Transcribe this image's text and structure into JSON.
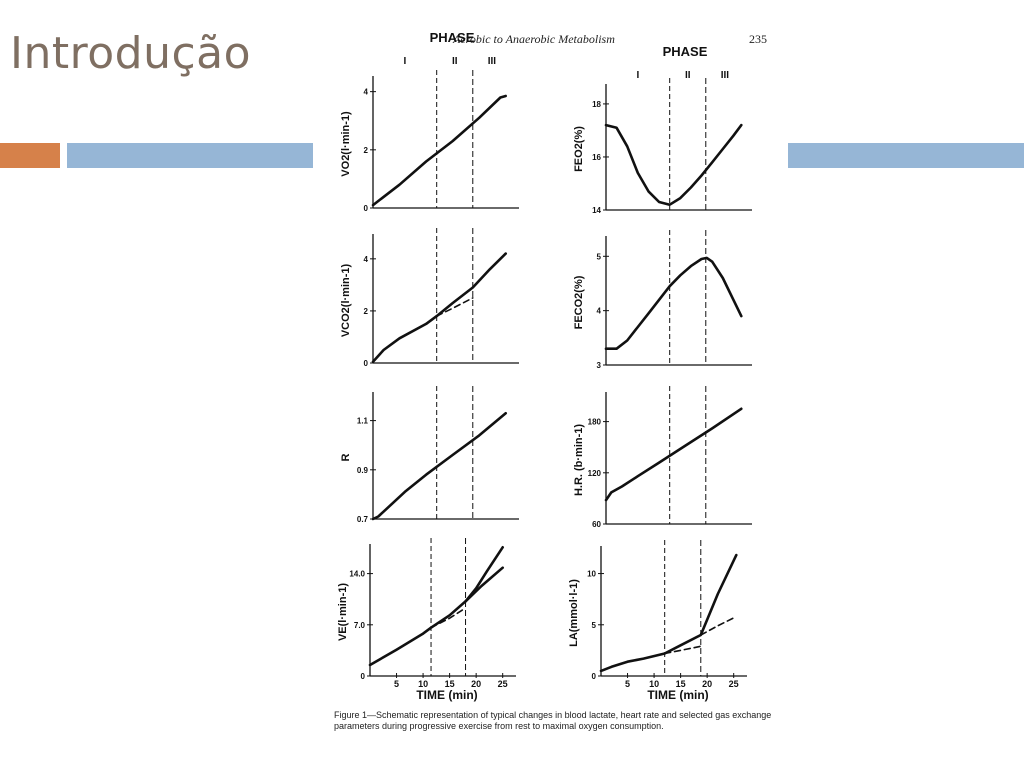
{
  "slide": {
    "title": "Introdução",
    "colors": {
      "title": "#7f6f62",
      "accent_orange": "#d6814a",
      "accent_blue": "#96b6d6"
    }
  },
  "figure": {
    "running_head": "Aerobic to Anaerobic Metabolism",
    "page_number": "235",
    "phase_label": "PHASE",
    "phases": [
      "I",
      "II",
      "III"
    ],
    "time_axis_label": "TIME (min)",
    "caption": "Figure 1—Schematic representation of typical changes in blood lactate, heart rate and selected gas exchange parameters during progressive exercise from rest to maximal oxygen consumption."
  },
  "chart_data": [
    {
      "type": "line",
      "id": "vo2",
      "column": "left",
      "ylabel": "VO2(l·min-1)",
      "ylim": [
        0,
        4.4
      ],
      "yticks": [
        0,
        2,
        4
      ],
      "xlim": [
        0,
        26
      ],
      "xticks": [],
      "thresholds": {
        "first": 12,
        "second": 18.8
      },
      "phase_header": true,
      "series": [
        {
          "style": "solid",
          "x": [
            0,
            5,
            10,
            15,
            20,
            24,
            25
          ],
          "y": [
            0.1,
            0.8,
            1.6,
            2.3,
            3.1,
            3.8,
            3.85
          ]
        }
      ]
    },
    {
      "type": "line",
      "id": "feo2",
      "column": "right",
      "ylabel": "FEO2(%)",
      "ylim": [
        14,
        18.6
      ],
      "yticks": [
        14,
        16,
        18
      ],
      "xlim": [
        0,
        26
      ],
      "xticks": [],
      "thresholds": {
        "first": 12,
        "second": 18.8
      },
      "phase_header": true,
      "series": [
        {
          "style": "solid",
          "x": [
            0,
            2,
            4,
            6,
            8,
            10,
            12,
            14,
            16,
            18,
            20,
            22,
            24,
            25.5
          ],
          "y": [
            17.2,
            17.1,
            16.4,
            15.4,
            14.7,
            14.3,
            14.2,
            14.45,
            14.85,
            15.3,
            15.8,
            16.3,
            16.8,
            17.2
          ]
        }
      ]
    },
    {
      "type": "line",
      "id": "vco2",
      "column": "left",
      "ylabel": "VCO2(l·min-1)",
      "ylim": [
        0,
        4.8
      ],
      "yticks": [
        0,
        2,
        4
      ],
      "xlim": [
        0,
        26
      ],
      "xticks": [],
      "thresholds": {
        "first": 12,
        "second": 18.8
      },
      "series": [
        {
          "style": "solid",
          "x": [
            0,
            2,
            5,
            10,
            12,
            15,
            18.8,
            22,
            25
          ],
          "y": [
            0.05,
            0.5,
            0.95,
            1.5,
            1.8,
            2.3,
            2.9,
            3.6,
            4.2
          ]
        },
        {
          "style": "dashed",
          "x": [
            12,
            15,
            18.8
          ],
          "y": [
            1.8,
            2.1,
            2.5
          ]
        }
      ]
    },
    {
      "type": "line",
      "id": "feco2",
      "column": "right",
      "ylabel": "FECO2(%)",
      "ylim": [
        3,
        5.3
      ],
      "yticks": [
        3,
        4,
        5
      ],
      "xlim": [
        0,
        26
      ],
      "xticks": [],
      "thresholds": {
        "first": 12,
        "second": 18.8
      },
      "series": [
        {
          "style": "solid",
          "x": [
            0,
            2,
            4,
            6,
            8,
            10,
            12,
            14,
            16,
            18,
            19,
            20,
            22,
            24,
            25.5
          ],
          "y": [
            3.3,
            3.3,
            3.45,
            3.7,
            3.95,
            4.2,
            4.45,
            4.65,
            4.82,
            4.95,
            4.97,
            4.9,
            4.6,
            4.2,
            3.9
          ]
        }
      ]
    },
    {
      "type": "line",
      "id": "r",
      "column": "left",
      "ylabel": "R",
      "ylim": [
        0.7,
        1.2
      ],
      "yticks": [
        0.7,
        0.9,
        1.1
      ],
      "xlim": [
        0,
        26
      ],
      "xticks": [],
      "thresholds": {
        "first": 12,
        "second": 18.8
      },
      "series": [
        {
          "style": "solid",
          "x": [
            0,
            1,
            3,
            6,
            10,
            15,
            20,
            25
          ],
          "y": [
            0.7,
            0.71,
            0.75,
            0.81,
            0.88,
            0.96,
            1.04,
            1.13
          ]
        }
      ]
    },
    {
      "type": "line",
      "id": "hr",
      "column": "right",
      "ylabel": "H.R. (b·min-1)",
      "ylim": [
        60,
        210
      ],
      "yticks": [
        60,
        120,
        180
      ],
      "xlim": [
        0,
        26
      ],
      "xticks": [],
      "thresholds": {
        "first": 12,
        "second": 18.8
      },
      "series": [
        {
          "style": "solid",
          "x": [
            0,
            1,
            3,
            6,
            10,
            15,
            20,
            25.5
          ],
          "y": [
            88,
            97,
            104,
            116,
            132,
            152,
            172,
            195
          ]
        }
      ]
    },
    {
      "type": "line",
      "id": "ve",
      "column": "left",
      "ylabel": "VE(l·min-1)",
      "ylim": [
        0,
        17.5
      ],
      "yticks": [
        0,
        7,
        14
      ],
      "yticklabels": [
        "0",
        "7.0",
        "14.0"
      ],
      "xlim": [
        0,
        26
      ],
      "xticks": [
        5,
        10,
        15,
        20,
        25
      ],
      "xlabel": "TIME (min)",
      "thresholds": {
        "first": 11.5,
        "second": 18
      },
      "series": [
        {
          "style": "solid",
          "x": [
            0,
            5,
            10,
            11.5,
            15,
            18,
            20,
            22,
            25
          ],
          "y": [
            1.5,
            3.6,
            5.8,
            6.6,
            8.3,
            10.2,
            12,
            14.3,
            17.6
          ]
        },
        {
          "style": "dashed",
          "x": [
            11.5,
            15,
            18
          ],
          "y": [
            6.6,
            7.9,
            9.3
          ]
        },
        {
          "style": "solid",
          "x": [
            18,
            21,
            25
          ],
          "y": [
            10.2,
            12.3,
            14.8
          ]
        }
      ]
    },
    {
      "type": "line",
      "id": "la",
      "column": "right",
      "ylabel": "LA(mmol·l-1)",
      "ylim": [
        0,
        12.3
      ],
      "yticks": [
        0,
        5,
        10
      ],
      "xlim": [
        0,
        26
      ],
      "xticks": [
        5,
        10,
        15,
        20,
        25
      ],
      "xlabel": "TIME (min)",
      "thresholds": {
        "first": 12,
        "second": 18.8
      },
      "series": [
        {
          "style": "solid",
          "x": [
            0,
            2,
            5,
            8,
            12,
            15,
            18.8,
            22,
            25.5
          ],
          "y": [
            0.5,
            0.9,
            1.4,
            1.7,
            2.2,
            3.0,
            4.0,
            8.0,
            11.8
          ]
        },
        {
          "style": "dashed",
          "x": [
            12,
            15,
            18.8
          ],
          "y": [
            2.2,
            2.5,
            2.9
          ]
        },
        {
          "style": "dashed",
          "x": [
            18.8,
            22,
            25.5
          ],
          "y": [
            4.0,
            4.9,
            5.8
          ]
        }
      ]
    }
  ]
}
